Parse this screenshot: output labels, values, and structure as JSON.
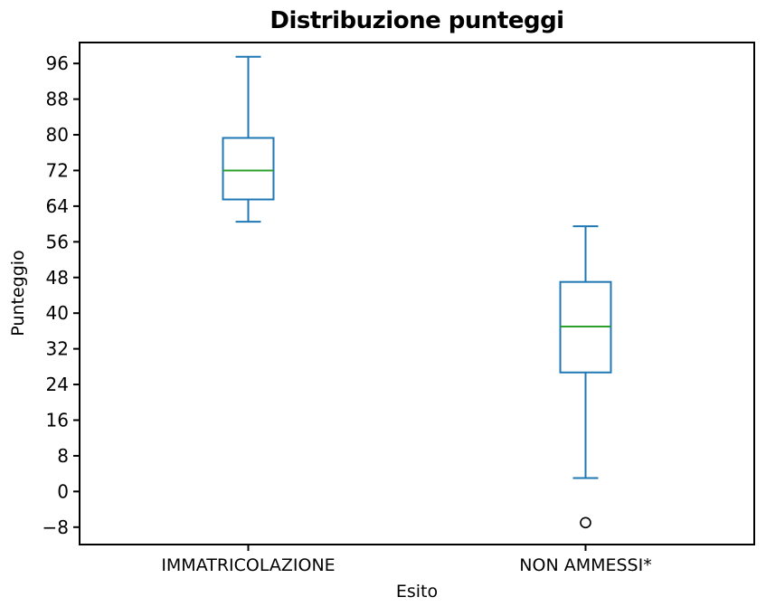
{
  "chart_data": {
    "type": "boxplot",
    "title": "Distribuzione punteggi",
    "xlabel": "Esito",
    "ylabel": "Punteggio",
    "categories": [
      "IMMATRICOLAZIONE",
      "NON AMMESSI*"
    ],
    "series": [
      {
        "name": "IMMATRICOLAZIONE",
        "position": 1,
        "whisker_low": 60.5,
        "q1": 65.5,
        "median": 72,
        "q3": 79.3,
        "whisker_high": 97.5,
        "outliers": []
      },
      {
        "name": "NON AMMESSI*",
        "position": 2,
        "whisker_low": 3,
        "q1": 26.7,
        "median": 37,
        "q3": 47,
        "whisker_high": 59.5,
        "outliers": [
          -7
        ]
      }
    ],
    "yticks": [
      96,
      88,
      80,
      72,
      64,
      56,
      48,
      40,
      32,
      24,
      16,
      8,
      0,
      -8
    ],
    "ylim": [
      -11.9,
      100.7
    ],
    "xlim": [
      0.5,
      2.5
    ],
    "grid": false,
    "legend": null,
    "colors": {
      "box": "#1f77b4",
      "median": "#2ca02c",
      "outlier": "#000000",
      "spine": "#000000",
      "text": "#000000"
    },
    "layout": {
      "fig_width": 847,
      "fig_height": 681,
      "plot_left": 88,
      "plot_top": 47,
      "plot_right": 834,
      "plot_bottom": 602,
      "box_width_units": 0.15,
      "cap_ratio": 0.5,
      "tick_len": 7,
      "y_tick_font": 20,
      "x_tick_font": 19
    }
  }
}
